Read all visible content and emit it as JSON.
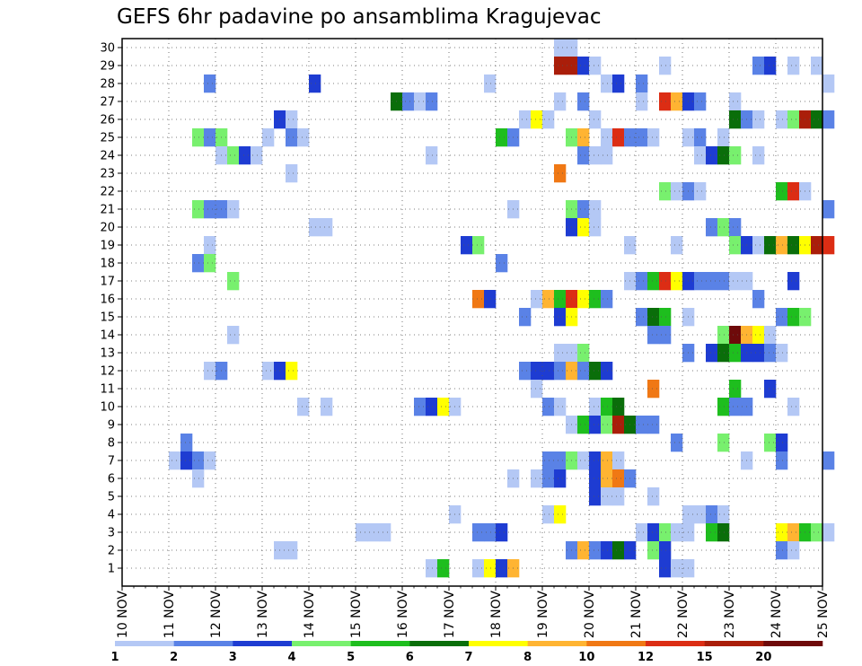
{
  "chart_data": {
    "type": "heatmap",
    "title": "GEFS 6hr padavine po ansamblima Kragujevac",
    "x_tick_labels": [
      "10 NOV",
      "11 NOV",
      "12 NOV",
      "13 NOV",
      "14 NOV",
      "15 NOV",
      "16 NOV",
      "17 NOV",
      "18 NOV",
      "19 NOV",
      "20 NOV",
      "21 NOV",
      "22 NOV",
      "23 NOV",
      "24 NOV",
      "25 NOV"
    ],
    "y_tick_labels": [
      "1",
      "2",
      "3",
      "4",
      "5",
      "6",
      "7",
      "8",
      "9",
      "10",
      "11",
      "12",
      "13",
      "14",
      "15",
      "16",
      "17",
      "18",
      "19",
      "20",
      "21",
      "22",
      "23",
      "24",
      "25",
      "26",
      "27",
      "28",
      "29",
      "30"
    ],
    "x_unit": "6-hour steps from 10 NOV 00Z",
    "grid": "dotted",
    "color_scale": {
      "levels": [
        "1",
        "2",
        "3",
        "4",
        "5",
        "6",
        "7",
        "8",
        "10",
        "12",
        "15",
        "20"
      ],
      "colors": [
        "#b4c8f5",
        "#5a82e6",
        "#1e3cd2",
        "#78f06e",
        "#1ebe1e",
        "#0a6e0a",
        "#ffff00",
        "#ffb432",
        "#f07814",
        "#dc2d14",
        "#aa1e0a",
        "#6e0a0a"
      ]
    },
    "cells": [
      [
        30,
        37,
        0
      ],
      [
        30,
        38,
        0
      ],
      [
        29,
        37,
        10
      ],
      [
        29,
        38,
        10
      ],
      [
        29,
        39,
        2
      ],
      [
        29,
        40,
        0
      ],
      [
        29,
        46,
        0
      ],
      [
        29,
        54,
        1
      ],
      [
        29,
        55,
        2
      ],
      [
        29,
        57,
        0
      ],
      [
        29,
        59,
        0
      ],
      [
        28,
        7,
        1
      ],
      [
        28,
        16,
        2
      ],
      [
        28,
        31,
        0
      ],
      [
        28,
        41,
        0
      ],
      [
        28,
        42,
        2
      ],
      [
        28,
        44,
        1
      ],
      [
        28,
        60,
        0
      ],
      [
        27,
        23,
        5
      ],
      [
        27,
        24,
        1
      ],
      [
        27,
        25,
        0
      ],
      [
        27,
        26,
        1
      ],
      [
        27,
        37,
        0
      ],
      [
        27,
        39,
        1
      ],
      [
        27,
        44,
        0
      ],
      [
        27,
        46,
        9
      ],
      [
        27,
        47,
        7
      ],
      [
        27,
        48,
        2
      ],
      [
        27,
        49,
        1
      ],
      [
        27,
        52,
        0
      ],
      [
        26,
        13,
        2
      ],
      [
        26,
        14,
        0
      ],
      [
        26,
        34,
        0
      ],
      [
        26,
        35,
        6
      ],
      [
        26,
        36,
        0
      ],
      [
        26,
        40,
        0
      ],
      [
        26,
        52,
        5
      ],
      [
        26,
        53,
        1
      ],
      [
        26,
        54,
        0
      ],
      [
        26,
        56,
        0
      ],
      [
        26,
        57,
        3
      ],
      [
        26,
        58,
        10
      ],
      [
        26,
        59,
        5
      ],
      [
        26,
        60,
        1
      ],
      [
        25,
        6,
        3
      ],
      [
        25,
        7,
        1
      ],
      [
        25,
        8,
        3
      ],
      [
        25,
        12,
        0
      ],
      [
        25,
        14,
        1
      ],
      [
        25,
        15,
        0
      ],
      [
        25,
        32,
        4
      ],
      [
        25,
        33,
        1
      ],
      [
        25,
        38,
        3
      ],
      [
        25,
        39,
        7
      ],
      [
        25,
        41,
        0
      ],
      [
        25,
        42,
        9
      ],
      [
        25,
        43,
        1
      ],
      [
        25,
        44,
        1
      ],
      [
        25,
        45,
        0
      ],
      [
        25,
        48,
        0
      ],
      [
        25,
        49,
        1
      ],
      [
        25,
        51,
        0
      ],
      [
        24,
        8,
        0
      ],
      [
        24,
        9,
        3
      ],
      [
        24,
        10,
        2
      ],
      [
        24,
        11,
        0
      ],
      [
        24,
        26,
        0
      ],
      [
        24,
        39,
        1
      ],
      [
        24,
        40,
        0
      ],
      [
        24,
        41,
        0
      ],
      [
        24,
        49,
        0
      ],
      [
        24,
        50,
        2
      ],
      [
        24,
        51,
        5
      ],
      [
        24,
        52,
        3
      ],
      [
        24,
        54,
        0
      ],
      [
        23,
        14,
        0
      ],
      [
        23,
        37,
        8
      ],
      [
        22,
        46,
        3
      ],
      [
        22,
        47,
        0
      ],
      [
        22,
        48,
        1
      ],
      [
        22,
        49,
        0
      ],
      [
        22,
        56,
        4
      ],
      [
        22,
        57,
        9
      ],
      [
        22,
        58,
        0
      ],
      [
        21,
        6,
        3
      ],
      [
        21,
        7,
        1
      ],
      [
        21,
        8,
        1
      ],
      [
        21,
        9,
        0
      ],
      [
        21,
        33,
        0
      ],
      [
        21,
        38,
        3
      ],
      [
        21,
        39,
        1
      ],
      [
        21,
        40,
        0
      ],
      [
        21,
        60,
        1
      ],
      [
        20,
        16,
        0
      ],
      [
        20,
        17,
        0
      ],
      [
        20,
        38,
        2
      ],
      [
        20,
        39,
        6
      ],
      [
        20,
        40,
        0
      ],
      [
        20,
        50,
        1
      ],
      [
        20,
        51,
        3
      ],
      [
        20,
        52,
        1
      ],
      [
        19,
        7,
        0
      ],
      [
        19,
        29,
        2
      ],
      [
        19,
        30,
        3
      ],
      [
        19,
        43,
        0
      ],
      [
        19,
        47,
        0
      ],
      [
        19,
        52,
        3
      ],
      [
        19,
        53,
        2
      ],
      [
        19,
        54,
        0
      ],
      [
        19,
        55,
        5
      ],
      [
        19,
        56,
        7
      ],
      [
        19,
        57,
        5
      ],
      [
        19,
        58,
        6
      ],
      [
        19,
        59,
        10
      ],
      [
        19,
        60,
        9
      ],
      [
        18,
        6,
        1
      ],
      [
        18,
        7,
        3
      ],
      [
        18,
        32,
        1
      ],
      [
        17,
        9,
        3
      ],
      [
        17,
        43,
        0
      ],
      [
        17,
        44,
        1
      ],
      [
        17,
        45,
        4
      ],
      [
        17,
        46,
        9
      ],
      [
        17,
        47,
        6
      ],
      [
        17,
        48,
        2
      ],
      [
        17,
        49,
        1
      ],
      [
        17,
        50,
        1
      ],
      [
        17,
        51,
        1
      ],
      [
        17,
        52,
        0
      ],
      [
        17,
        53,
        0
      ],
      [
        17,
        57,
        2
      ],
      [
        16,
        30,
        8
      ],
      [
        16,
        31,
        2
      ],
      [
        16,
        35,
        0
      ],
      [
        16,
        36,
        7
      ],
      [
        16,
        37,
        4
      ],
      [
        16,
        38,
        9
      ],
      [
        16,
        39,
        6
      ],
      [
        16,
        40,
        4
      ],
      [
        16,
        41,
        1
      ],
      [
        16,
        54,
        1
      ],
      [
        15,
        34,
        1
      ],
      [
        15,
        37,
        2
      ],
      [
        15,
        38,
        6
      ],
      [
        15,
        44,
        1
      ],
      [
        15,
        45,
        5
      ],
      [
        15,
        46,
        4
      ],
      [
        15,
        48,
        0
      ],
      [
        15,
        56,
        1
      ],
      [
        15,
        57,
        4
      ],
      [
        15,
        58,
        3
      ],
      [
        14,
        9,
        0
      ],
      [
        14,
        45,
        1
      ],
      [
        14,
        46,
        1
      ],
      [
        14,
        51,
        3
      ],
      [
        14,
        52,
        11
      ],
      [
        14,
        53,
        7
      ],
      [
        14,
        54,
        6
      ],
      [
        14,
        55,
        0
      ],
      [
        13,
        37,
        0
      ],
      [
        13,
        38,
        0
      ],
      [
        13,
        39,
        3
      ],
      [
        13,
        48,
        1
      ],
      [
        13,
        50,
        2
      ],
      [
        13,
        51,
        5
      ],
      [
        13,
        52,
        4
      ],
      [
        13,
        53,
        2
      ],
      [
        13,
        54,
        2
      ],
      [
        13,
        55,
        1
      ],
      [
        13,
        56,
        0
      ],
      [
        12,
        7,
        0
      ],
      [
        12,
        8,
        1
      ],
      [
        12,
        12,
        0
      ],
      [
        12,
        13,
        2
      ],
      [
        12,
        14,
        6
      ],
      [
        12,
        34,
        1
      ],
      [
        12,
        35,
        2
      ],
      [
        12,
        36,
        2
      ],
      [
        12,
        37,
        1
      ],
      [
        12,
        38,
        7
      ],
      [
        12,
        39,
        1
      ],
      [
        12,
        40,
        5
      ],
      [
        12,
        41,
        2
      ],
      [
        11,
        35,
        0
      ],
      [
        11,
        45,
        8
      ],
      [
        11,
        52,
        4
      ],
      [
        11,
        55,
        2
      ],
      [
        10,
        15,
        0
      ],
      [
        10,
        17,
        0
      ],
      [
        10,
        25,
        1
      ],
      [
        10,
        26,
        2
      ],
      [
        10,
        27,
        6
      ],
      [
        10,
        28,
        0
      ],
      [
        10,
        36,
        1
      ],
      [
        10,
        37,
        0
      ],
      [
        10,
        40,
        0
      ],
      [
        10,
        41,
        4
      ],
      [
        10,
        42,
        5
      ],
      [
        10,
        51,
        4
      ],
      [
        10,
        52,
        1
      ],
      [
        10,
        53,
        1
      ],
      [
        10,
        57,
        0
      ],
      [
        9,
        38,
        0
      ],
      [
        9,
        39,
        4
      ],
      [
        9,
        40,
        2
      ],
      [
        9,
        41,
        3
      ],
      [
        9,
        42,
        10
      ],
      [
        9,
        43,
        5
      ],
      [
        9,
        44,
        1
      ],
      [
        9,
        45,
        1
      ],
      [
        8,
        5,
        1
      ],
      [
        8,
        47,
        1
      ],
      [
        8,
        51,
        3
      ],
      [
        8,
        55,
        3
      ],
      [
        8,
        56,
        2
      ],
      [
        7,
        4,
        0
      ],
      [
        7,
        5,
        2
      ],
      [
        7,
        6,
        1
      ],
      [
        7,
        7,
        0
      ],
      [
        7,
        36,
        1
      ],
      [
        7,
        37,
        1
      ],
      [
        7,
        38,
        3
      ],
      [
        7,
        39,
        0
      ],
      [
        7,
        40,
        2
      ],
      [
        7,
        41,
        7
      ],
      [
        7,
        42,
        0
      ],
      [
        7,
        53,
        0
      ],
      [
        7,
        56,
        1
      ],
      [
        7,
        60,
        1
      ],
      [
        6,
        6,
        0
      ],
      [
        6,
        33,
        0
      ],
      [
        6,
        35,
        0
      ],
      [
        6,
        36,
        1
      ],
      [
        6,
        37,
        2
      ],
      [
        6,
        40,
        2
      ],
      [
        6,
        41,
        7
      ],
      [
        6,
        42,
        8
      ],
      [
        6,
        43,
        1
      ],
      [
        5,
        40,
        2
      ],
      [
        5,
        41,
        0
      ],
      [
        5,
        42,
        0
      ],
      [
        5,
        45,
        0
      ],
      [
        4,
        28,
        0
      ],
      [
        4,
        36,
        0
      ],
      [
        4,
        37,
        6
      ],
      [
        4,
        48,
        0
      ],
      [
        4,
        49,
        0
      ],
      [
        4,
        50,
        1
      ],
      [
        4,
        51,
        0
      ],
      [
        3,
        20,
        0
      ],
      [
        3,
        21,
        0
      ],
      [
        3,
        22,
        0
      ],
      [
        3,
        30,
        1
      ],
      [
        3,
        31,
        1
      ],
      [
        3,
        32,
        2
      ],
      [
        3,
        44,
        0
      ],
      [
        3,
        45,
        2
      ],
      [
        3,
        46,
        3
      ],
      [
        3,
        47,
        0
      ],
      [
        3,
        48,
        0
      ],
      [
        3,
        50,
        4
      ],
      [
        3,
        51,
        5
      ],
      [
        3,
        56,
        6
      ],
      [
        3,
        57,
        7
      ],
      [
        3,
        58,
        4
      ],
      [
        3,
        59,
        3
      ],
      [
        3,
        60,
        0
      ],
      [
        2,
        13,
        0
      ],
      [
        2,
        14,
        0
      ],
      [
        2,
        38,
        1
      ],
      [
        2,
        39,
        7
      ],
      [
        2,
        40,
        1
      ],
      [
        2,
        41,
        2
      ],
      [
        2,
        42,
        5
      ],
      [
        2,
        43,
        2
      ],
      [
        2,
        45,
        3
      ],
      [
        2,
        46,
        2
      ],
      [
        2,
        56,
        1
      ],
      [
        2,
        57,
        0
      ],
      [
        1,
        26,
        0
      ],
      [
        1,
        27,
        4
      ],
      [
        1,
        30,
        0
      ],
      [
        1,
        31,
        6
      ],
      [
        1,
        32,
        2
      ],
      [
        1,
        33,
        7
      ],
      [
        1,
        46,
        2
      ],
      [
        1,
        47,
        0
      ],
      [
        1,
        48,
        0
      ]
    ]
  }
}
